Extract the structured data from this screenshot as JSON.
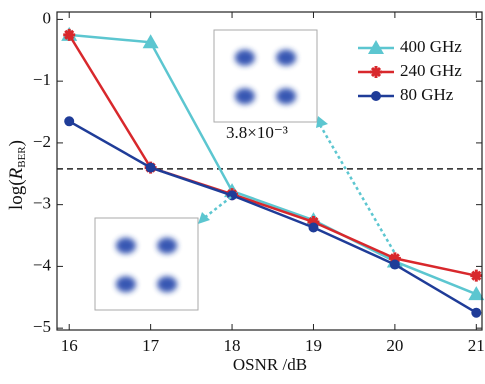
{
  "chart_data": {
    "type": "line",
    "xlabel": "OSNR /dB",
    "ylabel": [
      "log(",
      "R",
      "BER",
      ")"
    ],
    "x": [
      16,
      17,
      18,
      19,
      20,
      21
    ],
    "series": [
      {
        "name": "400 GHz",
        "color": "#5cc6d0",
        "marker": "triangle",
        "values": [
          -0.25,
          -0.37,
          -2.78,
          -3.25,
          -3.92,
          -4.45
        ]
      },
      {
        "name": "240 GHz",
        "color": "#d8282c",
        "marker": "plus",
        "values": [
          -0.25,
          -2.4,
          -2.83,
          -3.28,
          -3.87,
          -4.15
        ]
      },
      {
        "name": "80 GHz",
        "color": "#1f3c98",
        "marker": "circle",
        "values": [
          -1.65,
          -2.4,
          -2.85,
          -3.37,
          -3.97,
          -4.75
        ]
      }
    ],
    "threshold": -2.42,
    "annotation": "3.8×10⁻³",
    "xlim": [
      15.85,
      21.07
    ],
    "ylim": [
      -5.03,
      0.12
    ],
    "xticks": [
      16,
      17,
      18,
      19,
      20,
      21
    ],
    "yticks": [
      0,
      {
        "value": -1,
        "label": "−1"
      },
      {
        "value": -2,
        "label": "−2"
      },
      {
        "value": -3,
        "label": "−3"
      },
      {
        "value": -4,
        "label": "−4"
      },
      {
        "value": -5,
        "label": "−5"
      }
    ],
    "legend": "upper right"
  }
}
